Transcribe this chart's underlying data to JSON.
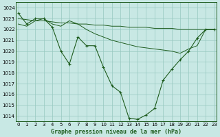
{
  "title": "Graphe pression niveau de la mer (hPa)",
  "bg_color": "#c8e8e4",
  "line_color": "#1e5c1e",
  "grid_color": "#96c8c0",
  "ylim": [
    1013.5,
    1024.5
  ],
  "xlim": [
    -0.3,
    23.3
  ],
  "yticks": [
    1014,
    1015,
    1016,
    1017,
    1018,
    1019,
    1020,
    1021,
    1022,
    1023,
    1024
  ],
  "xticks": [
    0,
    1,
    2,
    3,
    4,
    5,
    6,
    7,
    8,
    9,
    10,
    11,
    12,
    13,
    14,
    15,
    16,
    17,
    18,
    19,
    20,
    21,
    22,
    23
  ],
  "line_main": {
    "x": [
      0,
      1,
      2,
      3,
      4,
      5,
      6,
      7,
      8,
      9,
      10,
      11,
      12,
      13,
      14,
      15,
      16,
      17,
      18,
      19,
      20,
      21,
      22,
      23
    ],
    "y": [
      1023.5,
      1022.5,
      1023.0,
      1023.0,
      1022.2,
      1020.0,
      1018.8,
      1021.3,
      1020.5,
      1020.5,
      1018.5,
      1016.8,
      1016.2,
      1013.8,
      1013.7,
      1014.1,
      1014.7,
      1017.3,
      1018.3,
      1019.2,
      1020.0,
      1021.2,
      1022.0,
      1022.0
    ]
  },
  "line_upper": {
    "x": [
      0,
      1,
      2,
      3,
      4,
      5,
      6,
      7,
      8,
      9,
      10,
      11,
      12,
      13,
      14,
      15,
      16,
      17,
      18,
      19,
      20,
      21,
      22,
      23
    ],
    "y": [
      1023.0,
      1022.9,
      1022.8,
      1022.8,
      1022.7,
      1022.6,
      1022.6,
      1022.5,
      1022.5,
      1022.4,
      1022.4,
      1022.3,
      1022.3,
      1022.2,
      1022.2,
      1022.2,
      1022.1,
      1022.1,
      1022.1,
      1022.0,
      1022.0,
      1022.0,
      1022.0,
      1022.0
    ]
  },
  "line_mid": {
    "x": [
      0,
      1,
      2,
      3,
      4,
      5,
      6,
      7,
      8,
      9,
      10,
      11,
      12,
      13,
      14,
      15,
      16,
      17,
      18,
      19,
      20,
      21,
      22,
      23
    ],
    "y": [
      1022.5,
      1022.3,
      1022.8,
      1023.0,
      1022.5,
      1022.3,
      1022.8,
      1022.5,
      1022.0,
      1021.6,
      1021.3,
      1021.0,
      1020.8,
      1020.6,
      1020.4,
      1020.3,
      1020.2,
      1020.1,
      1020.0,
      1019.8,
      1020.2,
      1020.5,
      1022.0,
      1022.0
    ]
  }
}
